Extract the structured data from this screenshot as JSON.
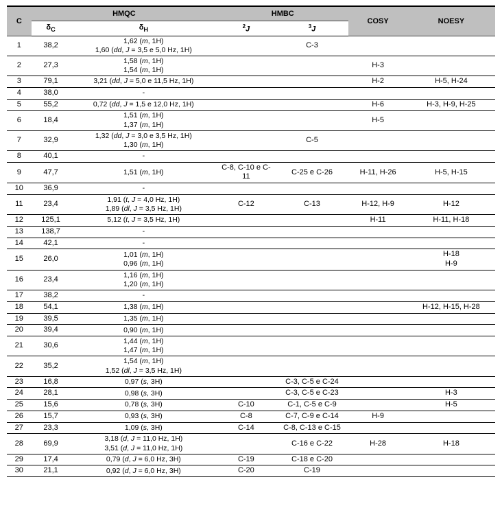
{
  "table": {
    "background_header": "#bfbfbf",
    "border_color": "#000000",
    "font_family": "Arial",
    "base_fontsize_pt": 8,
    "columns": [
      "C",
      "δC",
      "δH",
      "2J",
      "3J",
      "COSY",
      "NOESY"
    ],
    "group_headers": {
      "c": "C",
      "hmqc": "HMQC",
      "hmbc": "HMBC",
      "cosy": "COSY",
      "noesy": "NOESY"
    },
    "sub_headers": {
      "dc": "δC",
      "dh": "δH",
      "j2_pre": "2",
      "j2_ital": "J",
      "j3_pre": "3",
      "j3_ital": "J"
    },
    "rows": [
      {
        "c": "1",
        "dc": "38,2",
        "dh": "1,62 (<i>m</i>, 1H)<br>1,60 (<i>dd</i>, <i>J</i> = 3,5 e 5,0 Hz, 1H)",
        "j2": "",
        "j3": "C-3",
        "cosy": "",
        "noesy": ""
      },
      {
        "c": "2",
        "dc": "27,3",
        "dh": "1,58 (<i>m</i>, 1H)<br>1,54 (<i>m</i>, 1H)",
        "j2": "",
        "j3": "",
        "cosy": "H-3",
        "noesy": ""
      },
      {
        "c": "3",
        "dc": "79,1",
        "dh": "3,21 (<i>dd</i>, <i>J</i> = 5,0 e 11,5 Hz, 1H)",
        "j2": "",
        "j3": "",
        "cosy": "H-2",
        "noesy": "H-5, H-24"
      },
      {
        "c": "4",
        "dc": "38,0",
        "dh": "-",
        "j2": "",
        "j3": "",
        "cosy": "",
        "noesy": ""
      },
      {
        "c": "5",
        "dc": "55,2",
        "dh": "0,72 (<i>dd</i>, <i>J</i> = 1,5 e 12,0 Hz, 1H)",
        "j2": "",
        "j3": "",
        "cosy": "H-6",
        "noesy": "H-3, H-9, H-25"
      },
      {
        "c": "6",
        "dc": "18,4",
        "dh": "1,51 (<i>m</i>, 1H)<br>1,37 (<i>m</i>, 1H)",
        "j2": "",
        "j3": "",
        "cosy": "H-5",
        "noesy": ""
      },
      {
        "c": "7",
        "dc": "32,9",
        "dh": "1,32 (<i>dd</i>, <i>J</i> = 3,0 e 3,5 Hz, 1H)<br>1,30 (<i>m</i>, 1H)",
        "j2": "",
        "j3": "C-5",
        "cosy": "",
        "noesy": ""
      },
      {
        "c": "8",
        "dc": "40,1",
        "dh": "-",
        "j2": "",
        "j3": "",
        "cosy": "",
        "noesy": ""
      },
      {
        "c": "9",
        "dc": "47,7",
        "dh": "1,51 (<i>m</i>, 1H)",
        "j2": "C-8, C-10 e C-11",
        "j3": "C-25 e C-26",
        "cosy": "H-11, H-26",
        "noesy": "H-5, H-15"
      },
      {
        "c": "10",
        "dc": "36,9",
        "dh": "-",
        "j2": "",
        "j3": "",
        "cosy": "",
        "noesy": ""
      },
      {
        "c": "11",
        "dc": "23,4",
        "dh": "1,91 (<i>t</i>, <i>J</i> = 4,0 Hz, 1H)<br>1,89 (<i>dl</i>, <i>J</i> = 3,5 Hz, 1H)",
        "j2": "C-12",
        "j3": "C-13",
        "cosy": "H-12, H-9",
        "noesy": "H-12"
      },
      {
        "c": "12",
        "dc": "125,1",
        "dh": "5,12 (<i>t</i>, <i>J</i> = 3,5 Hz, 1H)",
        "j2": "",
        "j3": "",
        "cosy": "H-11",
        "noesy": "H-11, H-18"
      },
      {
        "c": "13",
        "dc": "138,7",
        "dh": "-",
        "j2": "",
        "j3": "",
        "cosy": "",
        "noesy": ""
      },
      {
        "c": "14",
        "dc": "42,1",
        "dh": "-",
        "j2": "",
        "j3": "",
        "cosy": "",
        "noesy": ""
      },
      {
        "c": "15",
        "dc": "26,0",
        "dh": "1,01 (<i>m</i>, 1H)<br>0,96 (<i>m</i>, 1H)",
        "j2": "",
        "j3": "",
        "cosy": "",
        "noesy": "H-18<br>H-9"
      },
      {
        "c": "16",
        "dc": "23,4",
        "dh": "1,16 (<i>m</i>, 1H)<br>1,20 (<i>m</i>, 1H)",
        "j2": "",
        "j3": "",
        "cosy": "",
        "noesy": ""
      },
      {
        "c": "17",
        "dc": "38,2",
        "dh": "-",
        "j2": "",
        "j3": "",
        "cosy": "",
        "noesy": ""
      },
      {
        "c": "18",
        "dc": "54,1",
        "dh": "1,38 (<i>m</i>, 1H)",
        "j2": "",
        "j3": "",
        "cosy": "",
        "noesy": "H-12, H-15, H-28"
      },
      {
        "c": "19",
        "dc": "39,5",
        "dh": "1,35 (<i>m</i>, 1H)",
        "j2": "",
        "j3": "",
        "cosy": "",
        "noesy": ""
      },
      {
        "c": "20",
        "dc": "39,4",
        "dh": "0,90 (<i>m</i>, 1H)",
        "j2": "",
        "j3": "",
        "cosy": "",
        "noesy": ""
      },
      {
        "c": "21",
        "dc": "30,6",
        "dh": "1,44 (<i>m</i>, 1H)<br>1,47 (<i>m</i>, 1H)",
        "j2": "",
        "j3": "",
        "cosy": "",
        "noesy": ""
      },
      {
        "c": "22",
        "dc": "35,2",
        "dh": "1,54 (<i>m</i>, 1H)<br>1,52 (<i>dl</i>, <i>J</i> = 3,5 Hz, 1H)",
        "j2": "",
        "j3": "",
        "cosy": "",
        "noesy": ""
      },
      {
        "c": "23",
        "dc": "16,8",
        "dh": "0,97 (<i>s</i>, 3H)",
        "j2": "",
        "j3": "C-3, C-5 e C-24",
        "cosy": "",
        "noesy": ""
      },
      {
        "c": "24",
        "dc": "28,1",
        "dh": "0,98 (<i>s</i>, 3H)",
        "j2": "",
        "j3": "C-3, C-5 e C-23",
        "cosy": "",
        "noesy": "H-3"
      },
      {
        "c": "25",
        "dc": "15,6",
        "dh": "0,78 (<i>s</i>, 3H)",
        "j2": "C-10",
        "j3": "C-1, C-5 e C-9",
        "cosy": "",
        "noesy": "H-5"
      },
      {
        "c": "26",
        "dc": "15,7",
        "dh": "0,93 (<i>s</i>, 3H)",
        "j2": "C-8",
        "j3": "C-7, C-9 e C-14",
        "cosy": "H-9",
        "noesy": ""
      },
      {
        "c": "27",
        "dc": "23,3",
        "dh": "1,09 (<i>s</i>, 3H)",
        "j2": "C-14",
        "j3": "C-8, C-13 e C-15",
        "cosy": "",
        "noesy": ""
      },
      {
        "c": "28",
        "dc": "69,9",
        "dh": "3,18 (<i>d</i>, <i>J</i> = 11,0 Hz, 1H)<br>3,51 (<i>d</i>, <i>J</i> = 11,0 Hz, 1H)",
        "j2": "",
        "j3": "C-16 e C-22",
        "cosy": "H-28",
        "noesy": "H-18"
      },
      {
        "c": "29",
        "dc": "17,4",
        "dh": "0,79 (<i>d</i>, <i>J</i> = 6,0 Hz, 3H)",
        "j2": "C-19",
        "j3": "C-18 e C-20",
        "cosy": "",
        "noesy": ""
      },
      {
        "c": "30",
        "dc": "21,1",
        "dh": "0,92 (<i>d</i>, <i>J</i> = 6,0 Hz, 3H)",
        "j2": "C-20",
        "j3": "C-19",
        "cosy": "",
        "noesy": ""
      }
    ]
  }
}
